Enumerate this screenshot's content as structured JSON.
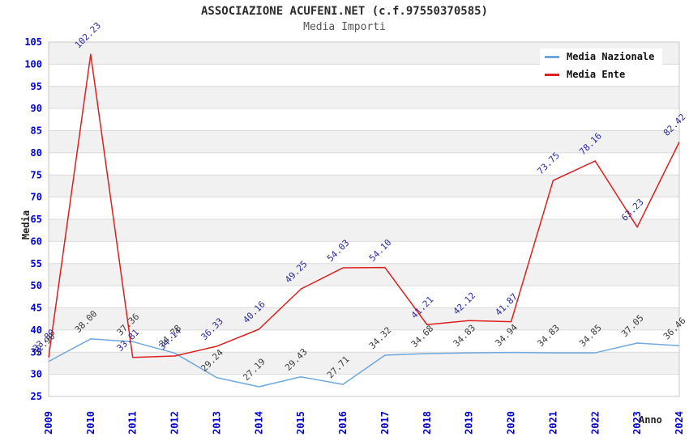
{
  "title": "ASSOCIAZIONE ACUFENI.NET (c.f.97550370585)",
  "subtitle": "Media Importi",
  "chart_data": {
    "type": "line",
    "x": [
      "2009",
      "2010",
      "2011",
      "2012",
      "2013",
      "2014",
      "2015",
      "2016",
      "2017",
      "2018",
      "2019",
      "2020",
      "2021",
      "2022",
      "2023",
      "2024"
    ],
    "series": [
      {
        "name": "Media Nazionale",
        "color": "#6FA8DC",
        "label_color": "#3c3c3c",
        "values": [
          32.9,
          38.0,
          37.36,
          34.78,
          29.24,
          27.19,
          29.43,
          27.71,
          34.32,
          34.68,
          34.83,
          34.94,
          34.83,
          34.85,
          37.05,
          36.46
        ]
      },
      {
        "name": "Media Ente",
        "color": "#DD1F1F",
        "label_color": "#2b2ba0",
        "values": [
          33.8,
          102.23,
          33.81,
          34.14,
          36.33,
          40.16,
          49.25,
          54.03,
          54.1,
          41.21,
          42.12,
          41.87,
          73.75,
          78.16,
          63.23,
          82.42
        ]
      }
    ],
    "xlabel": "Anno",
    "ylabel": "Media",
    "ylim": [
      25,
      105
    ],
    "ytick_step": 5,
    "grid": "horizontal-bands",
    "legend_position": "top-right"
  },
  "style": {
    "tick_color": "#0000CC",
    "band_gray": "#F1F1F1",
    "band_white": "#FFFFFF",
    "gridline_color": "#DBDBDB",
    "frame_color": "#C9C9C9"
  }
}
